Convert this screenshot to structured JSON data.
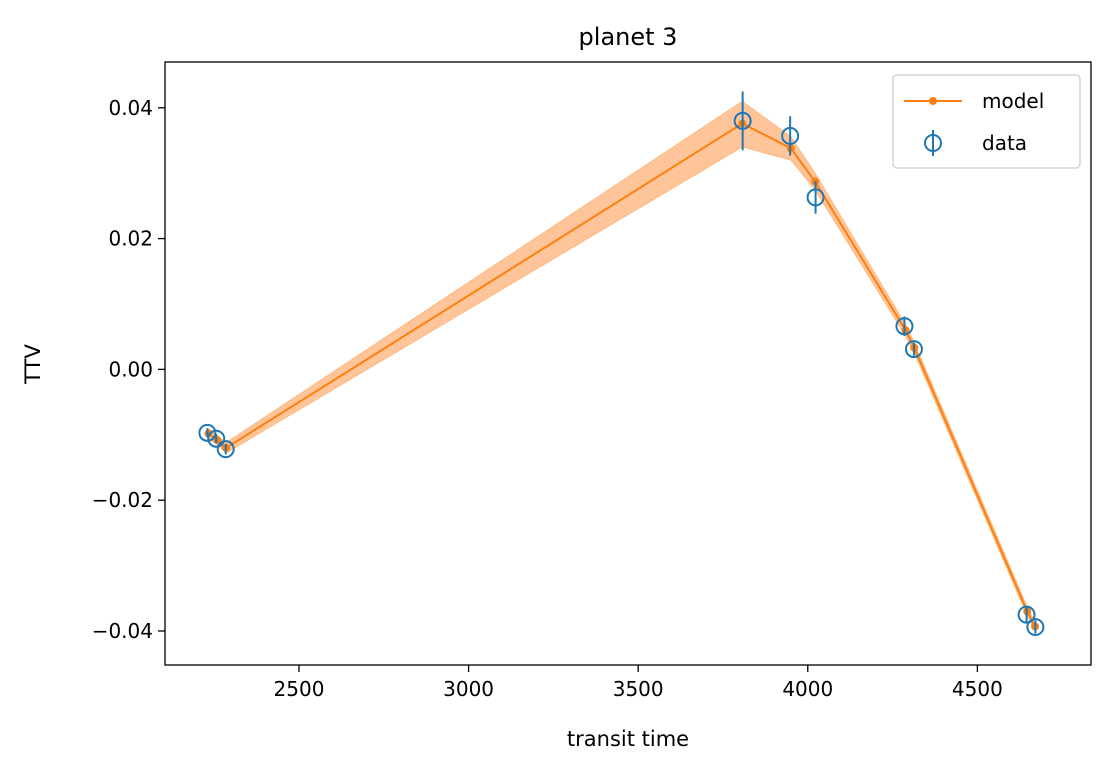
{
  "chart_data": {
    "type": "line",
    "title": "planet 3",
    "xlabel": "transit time",
    "ylabel": "TTV",
    "xlim": [
      2105,
      4835
    ],
    "ylim": [
      -0.0452,
      0.047
    ],
    "xticks": [
      2500,
      3000,
      3500,
      4000,
      4500
    ],
    "xtick_labels": [
      "2500",
      "3000",
      "3500",
      "4000",
      "4500"
    ],
    "yticks": [
      -0.04,
      -0.02,
      0.0,
      0.02,
      0.04
    ],
    "ytick_labels": [
      "−0.04",
      "−0.02",
      "0.00",
      "0.02",
      "0.04"
    ],
    "grid": false,
    "legend": {
      "position": "top-right",
      "entries": [
        "model",
        "data"
      ]
    },
    "colors": {
      "model": "#ff7f0e",
      "band": "#ffbb88",
      "data": "#1f77b4"
    },
    "model": {
      "name": "model",
      "x": [
        2233,
        2259,
        2285,
        3807,
        3950,
        4022,
        4288,
        4314,
        4647,
        4670
      ],
      "y": [
        -0.0098,
        -0.0108,
        -0.012,
        0.0376,
        0.0338,
        0.0287,
        0.006,
        0.0033,
        -0.037,
        -0.0393
      ],
      "band_low": [
        -0.0105,
        -0.0115,
        -0.0128,
        0.034,
        0.032,
        0.0274,
        0.0051,
        0.0025,
        -0.0377,
        -0.04
      ],
      "band_high": [
        -0.0091,
        -0.0101,
        -0.0112,
        0.041,
        0.0356,
        0.03,
        0.0069,
        0.0041,
        -0.0363,
        -0.0386
      ]
    },
    "data": {
      "name": "data",
      "x": [
        2230,
        2256,
        2284,
        3808,
        3948,
        4023,
        4285,
        4313,
        4645,
        4671
      ],
      "y": [
        -0.0097,
        -0.0106,
        -0.0122,
        0.038,
        0.0357,
        0.0263,
        0.0066,
        0.0031,
        -0.0375,
        -0.0394
      ],
      "yerr": [
        0.0007,
        0.0007,
        0.0008,
        0.0045,
        0.003,
        0.0025,
        0.0015,
        0.001,
        0.0012,
        0.001
      ]
    }
  }
}
